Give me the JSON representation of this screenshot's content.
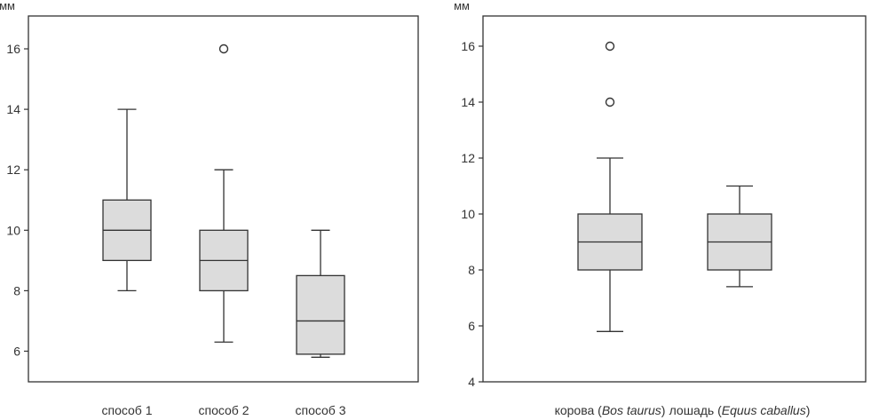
{
  "chart_data": [
    {
      "type": "box",
      "ylabel": "мм",
      "ylim": [
        5,
        17
      ],
      "yticks": [
        6,
        8,
        10,
        12,
        14,
        16
      ],
      "grid": false,
      "colors": {
        "box_fill": "#dcdcdc",
        "stroke": "#333333"
      },
      "categories": [
        "способ 1",
        "способ 2",
        "способ 3"
      ],
      "boxes": [
        {
          "label": "способ 1",
          "whisker_low": 8,
          "q1": 9,
          "median": 10,
          "q3": 11,
          "whisker_high": 14,
          "outliers": []
        },
        {
          "label": "способ 2",
          "whisker_low": 6.3,
          "q1": 8,
          "median": 9,
          "q3": 10,
          "whisker_high": 12,
          "outliers": [
            16
          ]
        },
        {
          "label": "способ 3",
          "whisker_low": 5.8,
          "q1": 5.9,
          "median": 7,
          "q3": 8.5,
          "whisker_high": 10,
          "outliers": []
        }
      ]
    },
    {
      "type": "box",
      "ylabel": "мм",
      "ylim": [
        4,
        17
      ],
      "yticks": [
        4,
        6,
        8,
        10,
        12,
        14,
        16
      ],
      "grid": false,
      "colors": {
        "box_fill": "#dcdcdc",
        "stroke": "#333333"
      },
      "categories": [
        "корова (Bos taurus)",
        "лошадь (Equus caballus)"
      ],
      "category_parts": [
        {
          "before": "корова (",
          "italic": "Bos taurus",
          "after": ")"
        },
        {
          "before": "лошадь (",
          "italic": "Equus caballus",
          "after": ")"
        }
      ],
      "boxes": [
        {
          "label": "корова (Bos taurus)",
          "whisker_low": 5.8,
          "q1": 8,
          "median": 9,
          "q3": 10,
          "whisker_high": 12,
          "outliers": [
            14,
            16
          ]
        },
        {
          "label": "лошадь (Equus caballus)",
          "whisker_low": 7.4,
          "q1": 8,
          "median": 9,
          "q3": 10,
          "whisker_high": 11,
          "outliers": []
        }
      ]
    }
  ]
}
